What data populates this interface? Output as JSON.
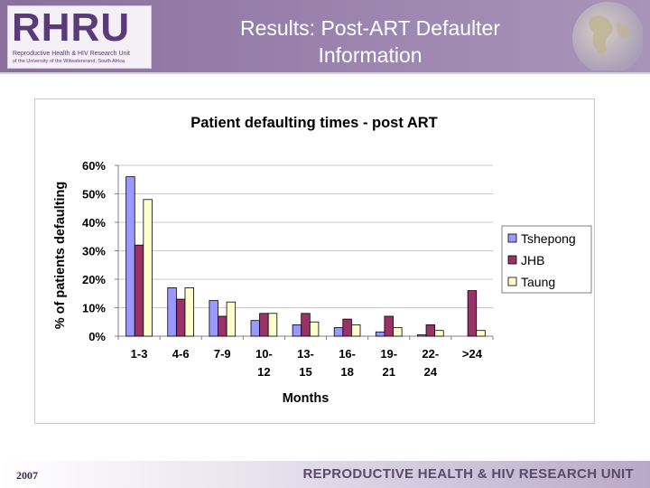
{
  "header": {
    "logo": {
      "text": "RHRU",
      "line1": "Reproductive Health & HIV Research Unit",
      "line2": "of the University of the Witwatersrand, South Africa"
    },
    "title_line1": "Results: Post-ART Defaulter",
    "title_line2": "Information"
  },
  "footer": {
    "year": "2007",
    "unit_name": "REPRODUCTIVE HEALTH & HIV RESEARCH UNIT"
  },
  "colors": {
    "tshepong": "#9999ff",
    "jhb": "#993366",
    "taung": "#ffffcc"
  },
  "chart_data": {
    "type": "bar",
    "title": "Patient defaulting times - post ART",
    "xlabel": "Months",
    "ylabel": "% of patients defaulting",
    "categories": [
      [
        "1-3"
      ],
      [
        "4-6"
      ],
      [
        "7-9"
      ],
      [
        "10-",
        "12"
      ],
      [
        "13-",
        "15"
      ],
      [
        "16-",
        "18"
      ],
      [
        "19-",
        "21"
      ],
      [
        "22-",
        "24"
      ],
      [
        ">24"
      ]
    ],
    "yticks": [
      "0%",
      "10%",
      "20%",
      "30%",
      "40%",
      "50%",
      "60%"
    ],
    "ylim": [
      0,
      60
    ],
    "legend_position": "right",
    "grid": true,
    "series": [
      {
        "name": "Tshepong",
        "color": "#9999ff",
        "values": [
          56,
          17,
          12.5,
          5.5,
          4,
          3,
          1.5,
          0.5,
          0
        ]
      },
      {
        "name": "JHB",
        "color": "#993366",
        "values": [
          32,
          13,
          7,
          8,
          8,
          6,
          7,
          4,
          16
        ]
      },
      {
        "name": "Taung",
        "color": "#ffffcc",
        "values": [
          48,
          17,
          12,
          8,
          5,
          4,
          3,
          2,
          2
        ]
      }
    ]
  }
}
